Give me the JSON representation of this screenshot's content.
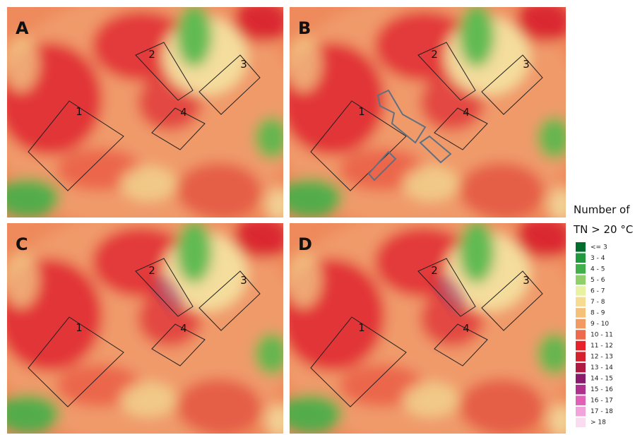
{
  "panels": [
    {
      "letter": "A",
      "zones": [
        "1",
        "2",
        "3",
        "4"
      ]
    },
    {
      "letter": "B",
      "zones": [
        "1",
        "2",
        "3",
        "4"
      ]
    },
    {
      "letter": "C",
      "zones": [
        "1",
        "2",
        "3",
        "4"
      ]
    },
    {
      "letter": "D",
      "zones": [
        "1",
        "2",
        "3",
        "4"
      ]
    }
  ],
  "legend": {
    "title_line1": "Number of",
    "title_line2": "TN > 20 °C",
    "items": [
      {
        "label": "<= 3",
        "color": "#006d2c"
      },
      {
        "label": "3 - 4",
        "color": "#1f9a3f"
      },
      {
        "label": "4 - 5",
        "color": "#41b04b"
      },
      {
        "label": "5 - 6",
        "color": "#8fd06a"
      },
      {
        "label": "6 - 7",
        "color": "#e9f2a0"
      },
      {
        "label": "7 - 8",
        "color": "#f7dc8f"
      },
      {
        "label": "8 - 9",
        "color": "#f5c078"
      },
      {
        "label": "9 - 10",
        "color": "#f29a62"
      },
      {
        "label": "10 - 11",
        "color": "#ee6a4c"
      },
      {
        "label": "11 - 12",
        "color": "#e8222a"
      },
      {
        "label": "12 - 13",
        "color": "#d5202e"
      },
      {
        "label": "13 - 14",
        "color": "#b01942"
      },
      {
        "label": "14 - 15",
        "color": "#8a1a6b"
      },
      {
        "label": "15 - 16",
        "color": "#b0308e"
      },
      {
        "label": "16 - 17",
        "color": "#e060b8"
      },
      {
        "label": "17 - 18",
        "color": "#f3a3dc"
      },
      {
        "label": "> 18",
        "color": "#fadcf0"
      }
    ]
  }
}
